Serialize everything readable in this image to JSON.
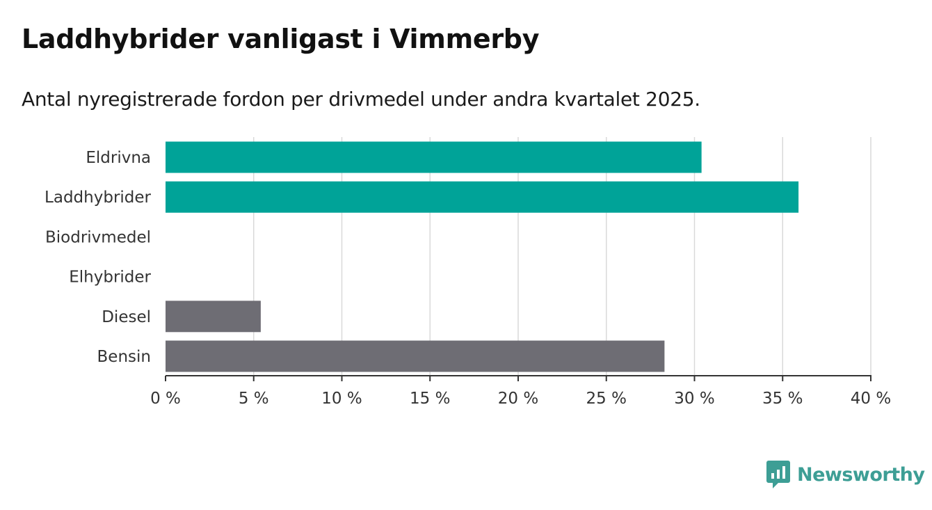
{
  "header": {
    "title": "Laddhybrider vanligast i Vimmerby",
    "subtitle": "Antal nyregistrerade fordon per drivmedel under andra kvartalet 2025."
  },
  "chart_data": {
    "type": "bar",
    "orientation": "horizontal",
    "categories": [
      "Eldrivna",
      "Laddhybrider",
      "Biodrivmedel",
      "Elhybrider",
      "Diesel",
      "Bensin"
    ],
    "values": [
      30.4,
      35.9,
      0,
      0,
      5.4,
      28.3
    ],
    "colors": [
      "#00a398",
      "#00a398",
      "#00a398",
      "#00a398",
      "#6e6d74",
      "#6e6d74"
    ],
    "xlim": [
      0,
      40
    ],
    "xticks": [
      0,
      5,
      10,
      15,
      20,
      25,
      30,
      35,
      40
    ],
    "tick_suffix": " %",
    "grid": true,
    "title": "Laddhybrider vanligast i Vimmerby",
    "xlabel": "",
    "ylabel": ""
  },
  "brand": {
    "name": "Newsworthy",
    "icon": "newsworthy-logo-icon",
    "color": "#3d9e95"
  }
}
